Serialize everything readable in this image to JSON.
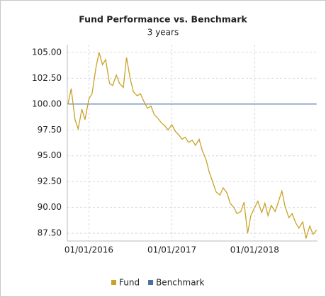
{
  "chart_data": {
    "type": "line",
    "title": "Fund Performance vs. Benchmark",
    "subtitle": "3 years",
    "x": [
      "2015-10-01",
      "2015-10-15",
      "2015-11-01",
      "2015-11-15",
      "2015-12-01",
      "2015-12-15",
      "2016-01-01",
      "2016-01-15",
      "2016-02-01",
      "2016-02-15",
      "2016-03-01",
      "2016-03-15",
      "2016-04-01",
      "2016-04-15",
      "2016-05-01",
      "2016-05-15",
      "2016-06-01",
      "2016-06-15",
      "2016-07-01",
      "2016-07-15",
      "2016-08-01",
      "2016-08-15",
      "2016-09-01",
      "2016-09-15",
      "2016-10-01",
      "2016-10-15",
      "2016-11-01",
      "2016-11-15",
      "2016-12-01",
      "2016-12-15",
      "2017-01-01",
      "2017-01-15",
      "2017-02-01",
      "2017-02-15",
      "2017-03-01",
      "2017-03-15",
      "2017-04-01",
      "2017-04-15",
      "2017-05-01",
      "2017-05-15",
      "2017-06-01",
      "2017-06-15",
      "2017-07-01",
      "2017-07-15",
      "2017-08-01",
      "2017-08-15",
      "2017-09-01",
      "2017-09-15",
      "2017-10-01",
      "2017-10-15",
      "2017-11-01",
      "2017-11-15",
      "2017-12-01",
      "2017-12-15",
      "2018-01-01",
      "2018-01-15",
      "2018-02-01",
      "2018-02-15",
      "2018-03-01",
      "2018-03-15",
      "2018-04-01",
      "2018-04-15",
      "2018-05-01",
      "2018-05-15",
      "2018-06-01",
      "2018-06-15",
      "2018-07-01",
      "2018-07-15",
      "2018-08-01",
      "2018-08-15",
      "2018-09-01",
      "2018-09-15",
      "2018-10-01"
    ],
    "series": [
      {
        "name": "Fund",
        "color": "#c9a227",
        "values": [
          100.0,
          101.5,
          98.5,
          97.6,
          99.5,
          98.5,
          100.5,
          101,
          103.5,
          105,
          103.8,
          104.3,
          102,
          101.8,
          102.8,
          102,
          101.6,
          104.5,
          102.5,
          101.2,
          100.8,
          101,
          100.2,
          99.6,
          99.8,
          99,
          98.6,
          98.2,
          97.9,
          97.5,
          98,
          97.4,
          97,
          96.6,
          96.8,
          96.3,
          96.5,
          96,
          96.6,
          95.5,
          94.6,
          93.4,
          92.4,
          91.5,
          91.2,
          91.9,
          91.4,
          90.4,
          90,
          89.4,
          89.6,
          90.5,
          87.5,
          89.2,
          90,
          90.6,
          89.5,
          90.4,
          89.2,
          90.2,
          89.6,
          90.5,
          91.6,
          90.1,
          89,
          89.4,
          88.5,
          88,
          88.6,
          87,
          88.2,
          87.4,
          87.8
        ]
      },
      {
        "name": "Benchmark",
        "color": "#4a6fa5",
        "values": [
          100,
          100,
          100,
          100,
          100,
          100,
          100,
          100,
          100,
          100,
          100,
          100,
          100,
          100,
          100,
          100,
          100,
          100,
          100,
          100,
          100,
          100,
          100,
          100,
          100,
          100,
          100,
          100,
          100,
          100,
          100,
          100,
          100,
          100,
          100,
          100,
          100,
          100,
          100,
          100,
          100,
          100,
          100,
          100,
          100,
          100,
          100,
          100,
          100,
          100,
          100,
          100,
          100,
          100,
          100,
          100,
          100,
          100,
          100,
          100,
          100,
          100,
          100,
          100,
          100,
          100,
          100,
          100,
          100,
          100,
          100,
          100,
          100
        ]
      }
    ],
    "xlim": [
      "2015-09-28",
      "2018-10-05"
    ],
    "xticks": [
      {
        "value": "2016-01-01",
        "label": "01/01/2016"
      },
      {
        "value": "2017-01-01",
        "label": "01/01/2017"
      },
      {
        "value": "2018-01-01",
        "label": "01/01/2018"
      }
    ],
    "ylim": [
      86.75,
      105.75
    ],
    "yticks": [
      {
        "value": 87.5,
        "label": "87.50"
      },
      {
        "value": 90,
        "label": "90.00"
      },
      {
        "value": 92.5,
        "label": "92.50"
      },
      {
        "value": 95,
        "label": "95.00"
      },
      {
        "value": 97.5,
        "label": "97.50"
      },
      {
        "value": 100,
        "label": "100.00"
      },
      {
        "value": 102.5,
        "label": "102.50"
      },
      {
        "value": 105,
        "label": "105.00"
      }
    ],
    "grid": true,
    "legend": "bottom"
  }
}
